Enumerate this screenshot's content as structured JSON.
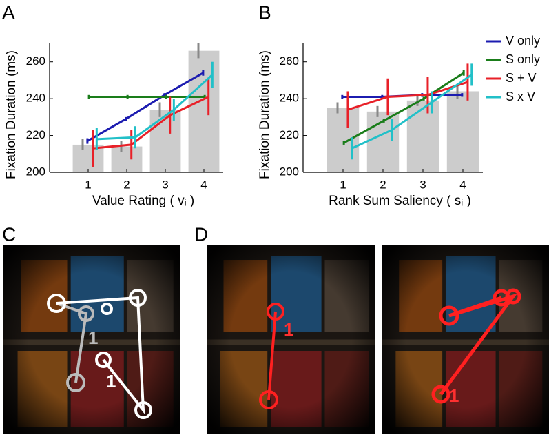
{
  "panels": [
    "A",
    "B",
    "C",
    "D"
  ],
  "photo_labels": [
    "1",
    "1",
    "1",
    "1"
  ],
  "chart_data": [
    {
      "type": "bar",
      "xlabel": "Value Rating ( vᵢ )",
      "ylabel": "Fixation Duration (ms)",
      "categories": [
        1,
        2,
        3,
        4
      ],
      "values": [
        215,
        214,
        234,
        266
      ],
      "errors": [
        3,
        3,
        4,
        4
      ],
      "color": "#cccccc",
      "xlim": [
        0,
        4.5
      ],
      "ylim": [
        200,
        270
      ],
      "yticks": [
        200,
        220,
        240,
        260
      ],
      "series": [
        {
          "name": "V only",
          "color": "#1c1cb0",
          "values": [
            217,
            229,
            242,
            254
          ],
          "errors": [
            1.5,
            1,
            1,
            1.5
          ]
        },
        {
          "name": "S only",
          "color": "#1a7d1a",
          "values": [
            241,
            241,
            241,
            241
          ],
          "errors": [
            1,
            1,
            1,
            1
          ]
        },
        {
          "name": "S + V",
          "color": "#e82028",
          "values": [
            213,
            215,
            231,
            241
          ],
          "errors": [
            10,
            8,
            10,
            10
          ]
        },
        {
          "name": "S x V",
          "color": "#22c0c8",
          "values": [
            218,
            219,
            234,
            253
          ],
          "errors": [
            6,
            6,
            6,
            7
          ]
        }
      ]
    },
    {
      "type": "bar",
      "xlabel": "Rank Sum Saliency ( sᵢ )",
      "ylabel": "Fixation Duration (ms)",
      "categories": [
        1,
        2,
        3,
        4
      ],
      "values": [
        235,
        233,
        239,
        244
      ],
      "errors": [
        3,
        3,
        3,
        4
      ],
      "color": "#cccccc",
      "xlim": [
        0,
        4.5
      ],
      "ylim": [
        200,
        270
      ],
      "yticks": [
        200,
        220,
        240,
        260
      ],
      "legend": "upper right",
      "series": [
        {
          "name": "V only",
          "color": "#1c1cb0",
          "values": [
            241,
            241,
            242,
            242
          ],
          "errors": [
            1,
            1,
            1,
            1
          ]
        },
        {
          "name": "S only",
          "color": "#1a7d1a",
          "values": [
            216,
            228,
            240,
            254
          ],
          "errors": [
            1,
            1,
            1,
            1.5
          ]
        },
        {
          "name": "S + V",
          "color": "#e82028",
          "values": [
            234,
            241,
            242,
            249
          ],
          "errors": [
            10,
            10,
            10,
            10
          ]
        },
        {
          "name": "S x V",
          "color": "#22c0c8",
          "values": [
            213,
            223,
            238,
            253
          ],
          "errors": [
            6,
            6,
            6,
            6
          ]
        }
      ]
    }
  ]
}
